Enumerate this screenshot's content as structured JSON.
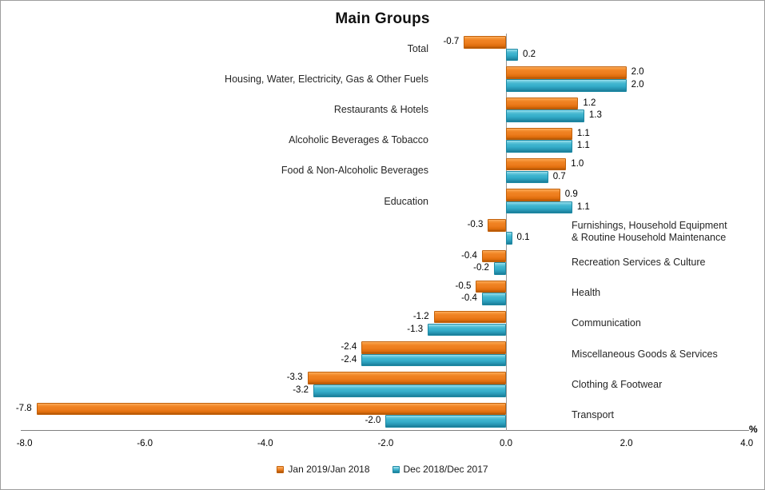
{
  "title": "Main Groups",
  "colors": {
    "jan_orange": "#ED7D1E",
    "dec_teal": "#35AECA",
    "axis_line": "#7F7F7F",
    "chart_border": "#9E9E9E",
    "text": "#262626"
  },
  "axis": {
    "unit_label": "%",
    "ticks": [
      {
        "label": "-8.0",
        "value": -8
      },
      {
        "label": "-6.0",
        "value": -6
      },
      {
        "label": "-4.0",
        "value": -4
      },
      {
        "label": "-2.0",
        "value": -2
      },
      {
        "label": "0.0",
        "value": 0
      },
      {
        "label": "2.0",
        "value": 2
      },
      {
        "label": "4.0",
        "value": 4
      }
    ]
  },
  "legend": [
    {
      "key": "jan",
      "label": "Jan 2019/Jan 2018"
    },
    {
      "key": "dec",
      "label": "Dec 2018/Dec 2017"
    }
  ],
  "chart_data": {
    "type": "bar",
    "orientation": "horizontal",
    "title": "Main Groups",
    "xlabel": "%",
    "xlim": [
      -8.0,
      4.0
    ],
    "grid": false,
    "legend_position": "bottom",
    "value_labels": "one-decimal",
    "categories": [
      {
        "label": "Total",
        "side": "left"
      },
      {
        "label": "Housing, Water, Electricity, Gas & Other Fuels",
        "side": "left"
      },
      {
        "label": "Restaurants & Hotels",
        "side": "left"
      },
      {
        "label": "Alcoholic Beverages & Tobacco",
        "side": "left"
      },
      {
        "label": "Food & Non-Alcoholic Beverages",
        "side": "left"
      },
      {
        "label": "Education",
        "side": "left"
      },
      {
        "label": "Furnishings, Household Equipment & Routine Household Maintenance",
        "side": "right",
        "lines": [
          "Furnishings, Household Equipment",
          "& Routine Household Maintenance"
        ]
      },
      {
        "label": "Recreation Services & Culture",
        "side": "right"
      },
      {
        "label": "Health",
        "side": "right"
      },
      {
        "label": "Communication",
        "side": "right"
      },
      {
        "label": "Miscellaneous Goods & Services",
        "side": "right"
      },
      {
        "label": "Clothing & Footwear",
        "side": "right"
      },
      {
        "label": "Transport",
        "side": "right"
      }
    ],
    "series": [
      {
        "key": "jan",
        "name": "Jan 2019/Jan 2018",
        "color": "#ED7D1E",
        "values": [
          -0.7,
          2.0,
          1.2,
          1.1,
          1.0,
          0.9,
          -0.3,
          -0.4,
          -0.5,
          -1.2,
          -2.4,
          -3.3,
          -7.8
        ]
      },
      {
        "key": "dec",
        "name": "Dec 2018/Dec 2017",
        "color": "#35AECA",
        "values": [
          0.2,
          2.0,
          1.3,
          1.1,
          0.7,
          1.1,
          0.1,
          -0.2,
          -0.4,
          -1.3,
          -2.4,
          -3.2,
          -2.0
        ]
      }
    ]
  }
}
